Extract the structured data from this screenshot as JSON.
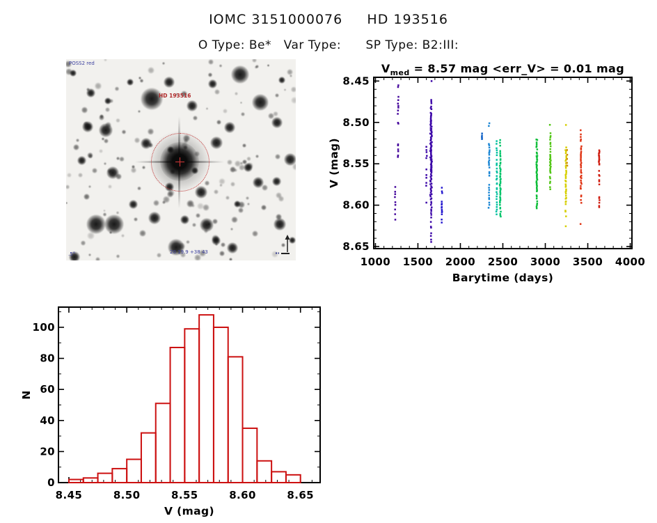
{
  "page": {
    "title": "IOMC 3151000076     HD 193516",
    "subtitle": "O Type: Be*   Var Type:      SP Type: B2:III:"
  },
  "finding_chart": {
    "survey_label": "POSS2 red",
    "target_label": "HD 193516",
    "coords_label": "20 19.9 +38 43",
    "scale_label": ".5°",
    "target_marker_color": "#c03434",
    "annotation_color": "#3b3f9e",
    "target_label_color": "#b02a2a",
    "prominent_stars": [
      [
        123,
        57,
        12
      ],
      [
        250,
        22,
        10
      ],
      [
        279,
        62,
        9
      ],
      [
        57,
        102,
        8
      ],
      [
        31,
        97,
        6
      ],
      [
        115,
        121,
        6
      ],
      [
        67,
        163,
        7
      ],
      [
        43,
        237,
        11
      ],
      [
        69,
        237,
        11
      ],
      [
        194,
        191,
        7
      ],
      [
        202,
        238,
        8
      ],
      [
        158,
        270,
        9
      ],
      [
        127,
        228,
        7
      ],
      [
        216,
        120,
        7
      ],
      [
        235,
        98,
        6
      ],
      [
        303,
        91,
        6
      ],
      [
        322,
        144,
        7
      ],
      [
        276,
        177,
        6
      ],
      [
        307,
        237,
        7
      ],
      [
        239,
        271,
        6
      ],
      [
        181,
        67,
        6
      ],
      [
        148,
        33,
        6
      ],
      [
        35,
        48,
        5
      ],
      [
        22,
        145,
        5
      ],
      [
        92,
        33,
        4
      ],
      [
        210,
        35,
        5
      ],
      [
        261,
        155,
        5
      ],
      [
        148,
        183,
        5
      ],
      [
        215,
        260,
        5
      ],
      [
        302,
        175,
        5
      ],
      [
        12,
        284,
        6
      ],
      [
        150,
        130,
        4
      ],
      [
        185,
        160,
        4
      ],
      [
        246,
        208,
        4
      ],
      [
        96,
        208,
        5
      ],
      [
        60,
        60,
        4
      ],
      [
        310,
        30,
        4
      ],
      [
        10,
        20,
        4
      ],
      [
        325,
        260,
        4
      ],
      [
        170,
        230,
        5
      ]
    ],
    "faint_star_count": 150
  },
  "chart_data": [
    {
      "type": "scatter",
      "title": {
        "prefix": "V",
        "sub": "med",
        "rest": " = 8.57 mag <err_V> = 0.01 mag"
      },
      "xlabel": "Barytime (days)",
      "ylabel": "V (mag)",
      "xlim": [
        980,
        4020
      ],
      "ylim": [
        8.4455,
        8.6525
      ],
      "xticks": [
        1000,
        1500,
        2000,
        2500,
        3000,
        3500,
        4000
      ],
      "xtick_labels": [
        "1000",
        "1500",
        "2000",
        "2500",
        "3000",
        "3500",
        "4000"
      ],
      "yticks": [
        8.45,
        8.5,
        8.55,
        8.6,
        8.65
      ],
      "ytick_labels": [
        "8.45",
        "8.50",
        "8.55",
        "8.60",
        "8.65"
      ],
      "x_minor_step": 100,
      "y_minor_step": 0.01,
      "y_axis_direction": "magnitude increases downward",
      "clusters": [
        {
          "x": 1268,
          "jitter": 6,
          "color": "#45079c",
          "segments": [
            [
              8.454,
              8.458,
              2
            ],
            [
              8.468,
              8.492,
              7
            ],
            [
              8.499,
              8.503,
              2
            ],
            [
              8.524,
              8.544,
              6
            ]
          ]
        },
        {
          "x": 1232,
          "jitter": 4,
          "color": "#45079c",
          "segments": [
            [
              8.575,
              8.618,
              9
            ]
          ]
        },
        {
          "x": 1600,
          "jitter": 6,
          "color": "#3c06a8",
          "segments": [
            [
              8.528,
              8.545,
              5
            ],
            [
              8.556,
              8.578,
              5
            ],
            [
              8.596,
              8.6,
              1
            ]
          ]
        },
        {
          "x": 1655,
          "jitter": 11,
          "color": "#3c06a8",
          "segments": [
            [
              8.449,
              8.453,
              1
            ],
            [
              8.472,
              8.486,
              6
            ],
            [
              8.488,
              8.5,
              9
            ],
            [
              8.5,
              8.53,
              26
            ],
            [
              8.53,
              8.56,
              30
            ],
            [
              8.56,
              8.592,
              20
            ],
            [
              8.592,
              8.616,
              10
            ],
            [
              8.618,
              8.648,
              7
            ]
          ]
        },
        {
          "x": 1782,
          "jitter": 5,
          "color": "#2317cf",
          "segments": [
            [
              8.578,
              8.588,
              3
            ],
            [
              8.595,
              8.612,
              9
            ],
            [
              8.616,
              8.622,
              2
            ]
          ]
        },
        {
          "x": 2255,
          "jitter": 4,
          "color": "#1565c8",
          "segments": [
            [
              8.513,
              8.521,
              5
            ]
          ]
        },
        {
          "x": 2338,
          "jitter": 6,
          "color": "#1b86d4",
          "segments": [
            [
              8.499,
              8.505,
              2
            ],
            [
              8.524,
              8.556,
              13
            ],
            [
              8.559,
              8.566,
              3
            ],
            [
              8.574,
              8.604,
              10
            ]
          ]
        },
        {
          "x": 2428,
          "jitter": 6,
          "color": "#00bfa0",
          "segments": [
            [
              8.522,
              8.546,
              7
            ],
            [
              8.548,
              8.6,
              18
            ],
            [
              8.601,
              8.612,
              4
            ]
          ]
        },
        {
          "x": 2470,
          "jitter": 7,
          "color": "#00c46a",
          "segments": [
            [
              8.521,
              8.529,
              3
            ],
            [
              8.534,
              8.56,
              12
            ],
            [
              8.56,
              8.596,
              20
            ],
            [
              8.596,
              8.616,
              8
            ]
          ]
        },
        {
          "x": 2900,
          "jitter": 8,
          "color": "#0ebd38",
          "segments": [
            [
              8.519,
              8.533,
              7
            ],
            [
              8.536,
              8.56,
              16
            ],
            [
              8.56,
              8.584,
              16
            ],
            [
              8.586,
              8.606,
              8
            ]
          ]
        },
        {
          "x": 3058,
          "jitter": 7,
          "color": "#52c616",
          "segments": [
            [
              8.502,
              8.506,
              1
            ],
            [
              8.512,
              8.536,
              9
            ],
            [
              8.538,
              8.562,
              16
            ],
            [
              8.564,
              8.582,
              6
            ]
          ]
        },
        {
          "x": 3242,
          "jitter": 7,
          "color": "#d6cf00",
          "segments": [
            [
              8.5,
              8.504,
              1
            ],
            [
              8.53,
              8.546,
              7
            ],
            [
              8.546,
              8.6,
              26
            ],
            [
              8.604,
              8.614,
              3
            ],
            [
              8.623,
              8.628,
              1
            ]
          ]
        },
        {
          "x": 3256,
          "jitter": 4,
          "color": "#d08c00",
          "segments": [
            [
              8.532,
              8.556,
              5
            ]
          ]
        },
        {
          "x": 3420,
          "jitter": 7,
          "color": "#e03414",
          "segments": [
            [
              8.508,
              8.512,
              1
            ],
            [
              8.513,
              8.525,
              4
            ],
            [
              8.528,
              8.556,
              14
            ],
            [
              8.556,
              8.582,
              12
            ],
            [
              8.586,
              8.598,
              4
            ],
            [
              8.621,
              8.626,
              1
            ]
          ]
        },
        {
          "x": 3635,
          "jitter": 5,
          "color": "#cf1d10",
          "segments": [
            [
              8.533,
              8.552,
              13
            ],
            [
              8.558,
              8.576,
              6
            ],
            [
              8.588,
              8.604,
              6
            ]
          ]
        }
      ]
    },
    {
      "type": "histogram",
      "xlabel": "V (mag)",
      "ylabel": "N",
      "bar_color": "#cc1111",
      "bin_start": 8.45,
      "bin_width": 0.0125,
      "values": [
        2,
        3,
        6,
        9,
        15,
        32,
        51,
        87,
        99,
        108,
        100,
        81,
        35,
        14,
        7,
        5
      ],
      "xticks": [
        8.45,
        8.5,
        8.55,
        8.6,
        8.65
      ],
      "xtick_labels": [
        "8.45",
        "8.50",
        "8.55",
        "8.60",
        "8.65"
      ],
      "yticks": [
        0,
        20,
        40,
        60,
        80,
        100
      ],
      "ytick_labels": [
        "0",
        "20",
        "40",
        "60",
        "80",
        "100"
      ],
      "x_minor_step": 0.01,
      "y_minor_step": 10,
      "xlim": [
        8.441,
        8.667
      ],
      "ylim": [
        0,
        113
      ]
    }
  ]
}
